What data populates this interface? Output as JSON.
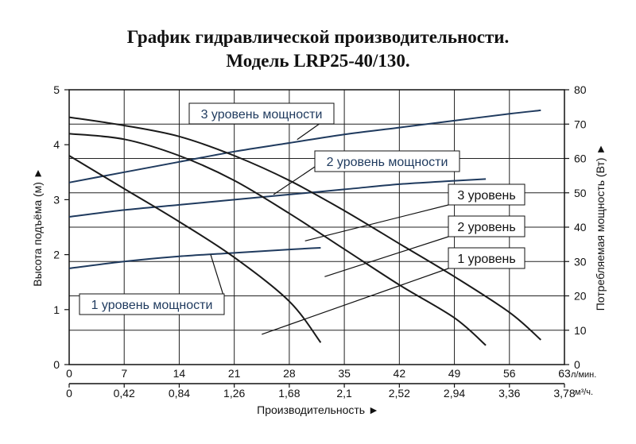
{
  "title_line1": "График гидравлической производительности.",
  "title_line2": "Модель LRP25-40/130.",
  "chart_data": {
    "type": "line",
    "xlabel": "Производительность ►",
    "ylabel_left": "Высота подъёма (м) ►",
    "ylabel_right": "Потребляемая мощность (Вт) ►",
    "x_ticks": [
      "0",
      "7",
      "14",
      "21",
      "28",
      "35",
      "42",
      "49",
      "56",
      "63"
    ],
    "x_unit": "л/мин.",
    "x2_ticks": [
      "0",
      "0,42",
      "0,84",
      "1,26",
      "1,68",
      "2,1",
      "2,52",
      "2,94",
      "3,36",
      "3,78"
    ],
    "x2_unit": "м³/ч.",
    "xlim": [
      0,
      63
    ],
    "ylim_left": [
      0,
      5
    ],
    "ylim_right": [
      0,
      80
    ],
    "y_ticks_left": [
      "0",
      "1",
      "2",
      "3",
      "4",
      "5"
    ],
    "y_ticks_right": [
      "0",
      "10",
      "20",
      "30",
      "40",
      "50",
      "60",
      "70",
      "80"
    ],
    "grid": true,
    "head_series": [
      {
        "name": "1 уровень",
        "label": "1 уровень",
        "points": [
          [
            0,
            3.8
          ],
          [
            7,
            3.2
          ],
          [
            14,
            2.6
          ],
          [
            21,
            1.95
          ],
          [
            28,
            1.15
          ],
          [
            32,
            0.4
          ]
        ]
      },
      {
        "name": "2 уровень",
        "label": "2 уровень",
        "points": [
          [
            0,
            4.2
          ],
          [
            7,
            4.1
          ],
          [
            14,
            3.8
          ],
          [
            21,
            3.35
          ],
          [
            28,
            2.75
          ],
          [
            35,
            2.1
          ],
          [
            42,
            1.45
          ],
          [
            49,
            0.85
          ],
          [
            53,
            0.35
          ]
        ]
      },
      {
        "name": "3 уровень",
        "label": "3 уровень",
        "points": [
          [
            0,
            4.5
          ],
          [
            7,
            4.35
          ],
          [
            14,
            4.15
          ],
          [
            21,
            3.8
          ],
          [
            28,
            3.35
          ],
          [
            35,
            2.8
          ],
          [
            42,
            2.2
          ],
          [
            49,
            1.6
          ],
          [
            56,
            0.95
          ],
          [
            60,
            0.45
          ]
        ]
      }
    ],
    "power_series": [
      {
        "name": "1 уровень мощности",
        "label": "1 уровень мощности",
        "points": [
          [
            0,
            28
          ],
          [
            7,
            30
          ],
          [
            14,
            31.5
          ],
          [
            21,
            32.5
          ],
          [
            28,
            33.5
          ],
          [
            32,
            34
          ]
        ]
      },
      {
        "name": "2 уровень мощности",
        "label": "2 уровень мощности",
        "points": [
          [
            0,
            43
          ],
          [
            7,
            45
          ],
          [
            14,
            46.5
          ],
          [
            21,
            48
          ],
          [
            28,
            49.5
          ],
          [
            35,
            51
          ],
          [
            42,
            52.5
          ],
          [
            49,
            53.5
          ],
          [
            53,
            54
          ]
        ]
      },
      {
        "name": "3 уровень мощности",
        "label": "3 уровень мощности",
        "points": [
          [
            0,
            53
          ],
          [
            7,
            56
          ],
          [
            14,
            59
          ],
          [
            21,
            62
          ],
          [
            28,
            64.5
          ],
          [
            35,
            67
          ],
          [
            42,
            69
          ],
          [
            49,
            71
          ],
          [
            56,
            73
          ],
          [
            60,
            74
          ]
        ]
      }
    ]
  },
  "colors": {
    "head_line": "#1a1a1a",
    "power_line": "#1f3a5e",
    "grid": "#222222"
  }
}
